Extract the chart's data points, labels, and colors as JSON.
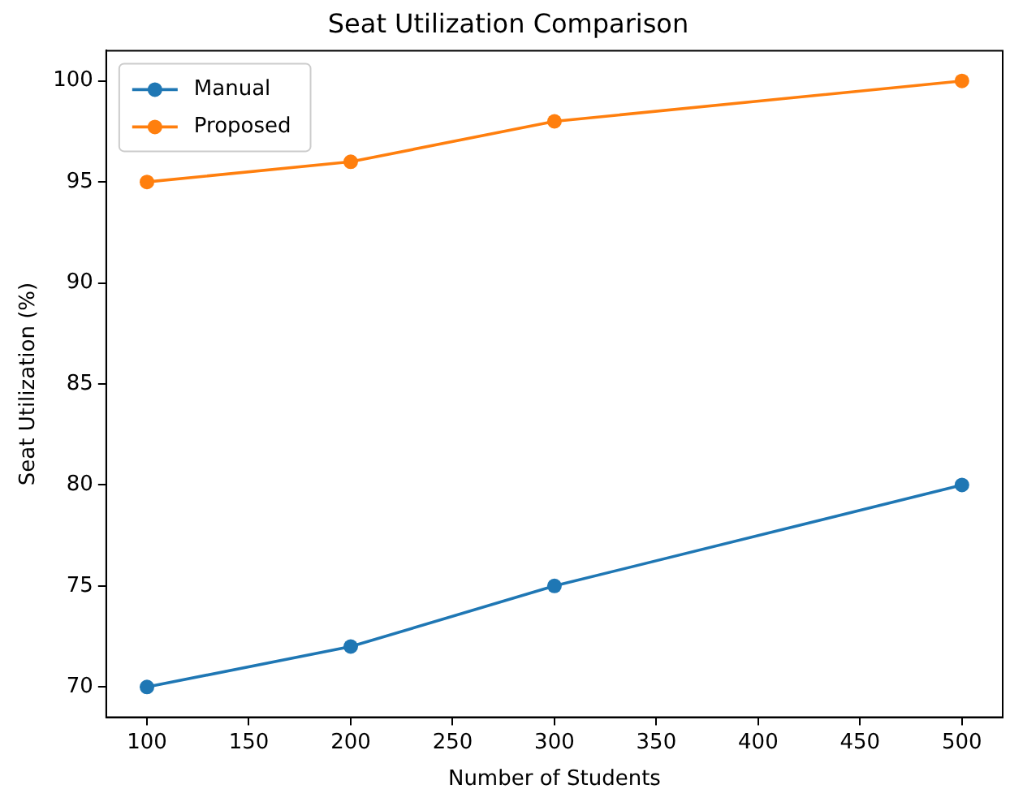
{
  "chart_data": {
    "type": "line",
    "title": "Seat Utilization Comparison",
    "xlabel": "Number of Students",
    "ylabel": "Seat Utilization (%)",
    "x": [
      100,
      200,
      300,
      500
    ],
    "series": [
      {
        "name": "Manual",
        "color": "#1f77b4",
        "values": [
          70,
          72,
          75,
          80
        ]
      },
      {
        "name": "Proposed",
        "color": "#ff7f0e",
        "values": [
          95,
          96,
          98,
          100
        ]
      }
    ],
    "xlim": [
      80,
      520
    ],
    "xticks": [
      100,
      150,
      200,
      250,
      300,
      350,
      400,
      450,
      500
    ],
    "ylim": [
      68.5,
      101.5
    ],
    "yticks": [
      70,
      75,
      80,
      85,
      90,
      95,
      100
    ],
    "grid": false,
    "legend": "top left",
    "marker": "circle",
    "line_style": "solid"
  }
}
